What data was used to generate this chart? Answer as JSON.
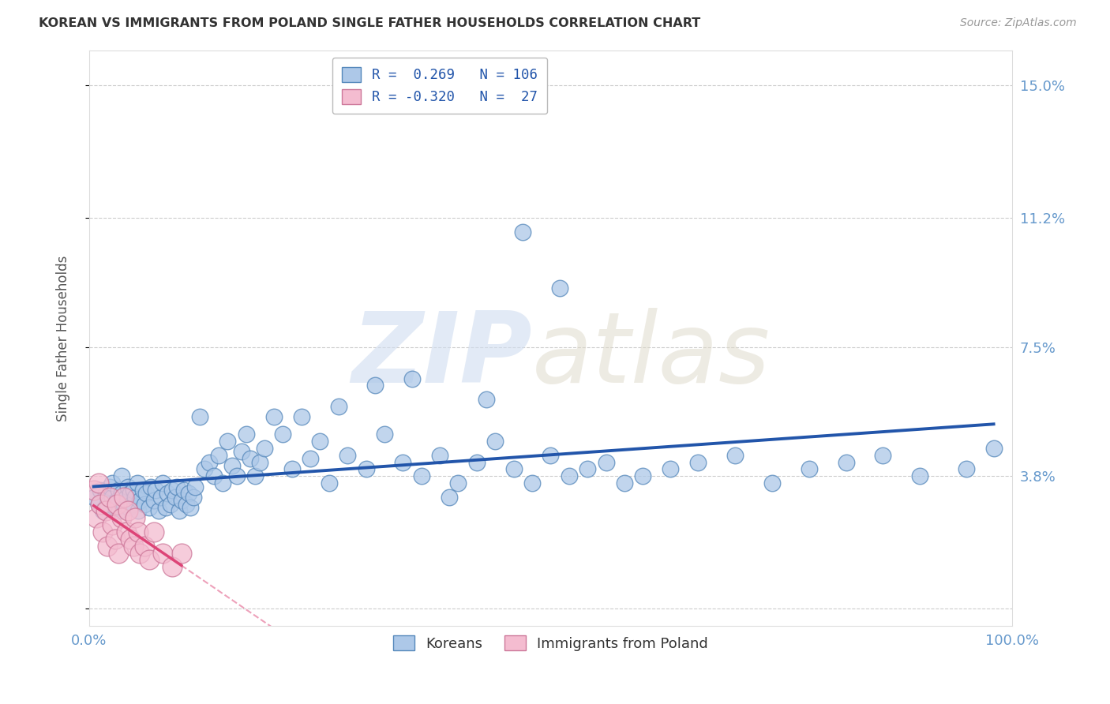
{
  "title": "KOREAN VS IMMIGRANTS FROM POLAND SINGLE FATHER HOUSEHOLDS CORRELATION CHART",
  "source": "Source: ZipAtlas.com",
  "ylabel": "Single Father Households",
  "yticks": [
    0.0,
    0.038,
    0.075,
    0.112,
    0.15
  ],
  "ytick_labels": [
    "",
    "3.8%",
    "7.5%",
    "11.2%",
    "15.0%"
  ],
  "xlim": [
    0.0,
    1.0
  ],
  "ylim": [
    -0.005,
    0.16
  ],
  "korean_color": "#adc8e8",
  "korean_edge": "#5588bb",
  "poland_color": "#f4bcd0",
  "poland_edge": "#cc7799",
  "trendline_korean_color": "#2255aa",
  "trendline_poland_color": "#dd4477",
  "background_color": "#ffffff",
  "grid_color": "#cccccc",
  "title_color": "#333333",
  "label_color": "#6699cc",
  "legend_label_1": "R =  0.269   N = 106",
  "legend_label_2": "R = -0.320   N =  27",
  "bottom_legend_1": "Koreans",
  "bottom_legend_2": "Immigrants from Poland",
  "koreans_x": [
    0.005,
    0.01,
    0.012,
    0.015,
    0.018,
    0.02,
    0.022,
    0.025,
    0.025,
    0.028,
    0.03,
    0.032,
    0.033,
    0.035,
    0.035,
    0.038,
    0.04,
    0.042,
    0.043,
    0.045,
    0.046,
    0.048,
    0.05,
    0.052,
    0.053,
    0.055,
    0.058,
    0.06,
    0.062,
    0.065,
    0.067,
    0.07,
    0.072,
    0.075,
    0.078,
    0.08,
    0.083,
    0.085,
    0.088,
    0.09,
    0.093,
    0.095,
    0.098,
    0.1,
    0.103,
    0.105,
    0.108,
    0.11,
    0.113,
    0.115,
    0.12,
    0.125,
    0.13,
    0.135,
    0.14,
    0.145,
    0.15,
    0.155,
    0.16,
    0.165,
    0.17,
    0.175,
    0.18,
    0.185,
    0.19,
    0.2,
    0.21,
    0.22,
    0.23,
    0.24,
    0.25,
    0.26,
    0.27,
    0.28,
    0.3,
    0.32,
    0.34,
    0.36,
    0.38,
    0.4,
    0.42,
    0.44,
    0.46,
    0.48,
    0.5,
    0.52,
    0.54,
    0.56,
    0.58,
    0.6,
    0.63,
    0.66,
    0.7,
    0.74,
    0.78,
    0.82,
    0.86,
    0.9,
    0.95,
    0.98,
    0.31,
    0.35,
    0.39,
    0.43,
    0.47,
    0.51
  ],
  "koreans_y": [
    0.032,
    0.03,
    0.034,
    0.028,
    0.033,
    0.03,
    0.035,
    0.032,
    0.036,
    0.029,
    0.031,
    0.034,
    0.028,
    0.033,
    0.038,
    0.03,
    0.032,
    0.035,
    0.029,
    0.033,
    0.03,
    0.034,
    0.032,
    0.036,
    0.028,
    0.031,
    0.034,
    0.03,
    0.033,
    0.029,
    0.035,
    0.031,
    0.034,
    0.028,
    0.032,
    0.036,
    0.029,
    0.033,
    0.03,
    0.034,
    0.032,
    0.035,
    0.028,
    0.031,
    0.034,
    0.03,
    0.033,
    0.029,
    0.032,
    0.035,
    0.055,
    0.04,
    0.042,
    0.038,
    0.044,
    0.036,
    0.048,
    0.041,
    0.038,
    0.045,
    0.05,
    0.043,
    0.038,
    0.042,
    0.046,
    0.055,
    0.05,
    0.04,
    0.055,
    0.043,
    0.048,
    0.036,
    0.058,
    0.044,
    0.04,
    0.05,
    0.042,
    0.038,
    0.044,
    0.036,
    0.042,
    0.048,
    0.04,
    0.036,
    0.044,
    0.038,
    0.04,
    0.042,
    0.036,
    0.038,
    0.04,
    0.042,
    0.044,
    0.036,
    0.04,
    0.042,
    0.044,
    0.038,
    0.04,
    0.046,
    0.064,
    0.066,
    0.032,
    0.06,
    0.108,
    0.092
  ],
  "poland_x": [
    0.005,
    0.008,
    0.01,
    0.012,
    0.015,
    0.018,
    0.02,
    0.022,
    0.025,
    0.028,
    0.03,
    0.032,
    0.035,
    0.038,
    0.04,
    0.042,
    0.045,
    0.048,
    0.05,
    0.053,
    0.055,
    0.06,
    0.065,
    0.07,
    0.08,
    0.09,
    0.1
  ],
  "poland_y": [
    0.034,
    0.026,
    0.036,
    0.03,
    0.022,
    0.028,
    0.018,
    0.032,
    0.024,
    0.02,
    0.03,
    0.016,
    0.026,
    0.032,
    0.022,
    0.028,
    0.02,
    0.018,
    0.026,
    0.022,
    0.016,
    0.018,
    0.014,
    0.022,
    0.016,
    0.012,
    0.016
  ]
}
